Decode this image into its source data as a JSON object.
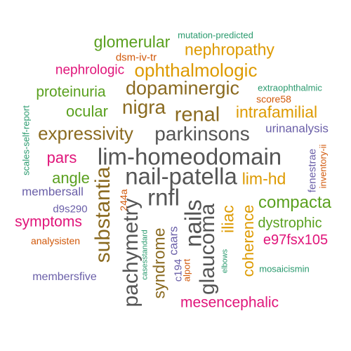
{
  "colors": {
    "gray": "#555555",
    "brown": "#8a6a20",
    "orange": "#dd9a00",
    "green": "#5aa01f",
    "teal": "#2a9a6e",
    "magenta": "#e0157a",
    "purple": "#6a5fa8",
    "rust": "#d1580a"
  },
  "words": [
    {
      "text": "mutation-predicted",
      "color": "teal"
    },
    {
      "text": "glomerular",
      "color": "green"
    },
    {
      "text": "nephropathy",
      "color": "orange"
    },
    {
      "text": "dsm-iv-tr",
      "color": "rust"
    },
    {
      "text": "nephrologic",
      "color": "magenta"
    },
    {
      "text": "ophthalmologic",
      "color": "orange"
    },
    {
      "text": "proteinuria",
      "color": "green"
    },
    {
      "text": "dopaminergic",
      "color": "brown"
    },
    {
      "text": "extraophthalmic",
      "color": "teal"
    },
    {
      "text": "score58",
      "color": "rust"
    },
    {
      "text": "ocular",
      "color": "green"
    },
    {
      "text": "nigra",
      "color": "brown"
    },
    {
      "text": "renal",
      "color": "brown"
    },
    {
      "text": "intrafamilial",
      "color": "orange"
    },
    {
      "text": "scales-self-report",
      "color": "teal"
    },
    {
      "text": "expressivity",
      "color": "brown"
    },
    {
      "text": "parkinsons",
      "color": "gray"
    },
    {
      "text": "urinanalysis",
      "color": "purple"
    },
    {
      "text": "pars",
      "color": "magenta"
    },
    {
      "text": "lim-homeodomain",
      "color": "gray"
    },
    {
      "text": "fenestrae",
      "color": "purple"
    },
    {
      "text": "inventory-ii",
      "color": "rust"
    },
    {
      "text": "angle",
      "color": "green"
    },
    {
      "text": "substantia",
      "color": "brown"
    },
    {
      "text": "nail-patella",
      "color": "gray"
    },
    {
      "text": "lim-hd",
      "color": "orange"
    },
    {
      "text": "membersall",
      "color": "purple"
    },
    {
      "text": "244a",
      "color": "rust"
    },
    {
      "text": "rnfl",
      "color": "gray"
    },
    {
      "text": "compacta",
      "color": "green"
    },
    {
      "text": "d9s290",
      "color": "purple"
    },
    {
      "text": "pachymetry",
      "color": "gray"
    },
    {
      "text": "nails",
      "color": "gray"
    },
    {
      "text": "iliac",
      "color": "orange"
    },
    {
      "text": "symptoms",
      "color": "magenta"
    },
    {
      "text": "glaucoma",
      "color": "gray"
    },
    {
      "text": "coherence",
      "color": "orange"
    },
    {
      "text": "dystrophic",
      "color": "green"
    },
    {
      "text": "analysisten",
      "color": "rust"
    },
    {
      "text": "syndrome",
      "color": "brown"
    },
    {
      "text": "caars",
      "color": "purple"
    },
    {
      "text": "e97fsx105",
      "color": "magenta"
    },
    {
      "text": "casesstandard",
      "color": "teal"
    },
    {
      "text": "c194",
      "color": "purple"
    },
    {
      "text": "alport",
      "color": "rust"
    },
    {
      "text": "elbows",
      "color": "teal"
    },
    {
      "text": "mosaicismin",
      "color": "teal"
    },
    {
      "text": "membersfive",
      "color": "purple"
    },
    {
      "text": "mesencephalic",
      "color": "magenta"
    }
  ]
}
